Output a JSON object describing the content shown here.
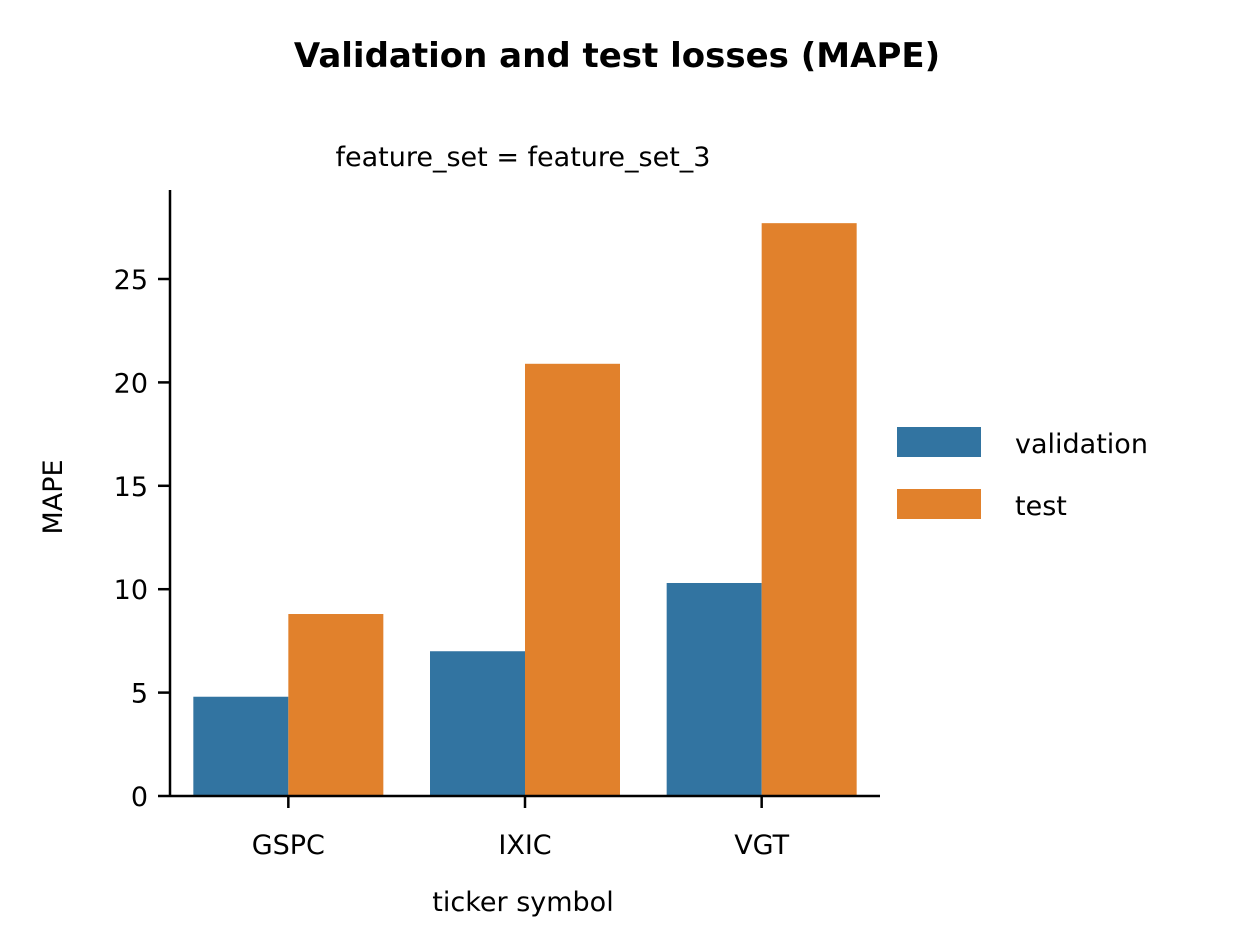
{
  "chart_data": {
    "type": "bar",
    "title": "Validation and test losses (MAPE)",
    "subtitle": "feature_set = feature_set_3",
    "xlabel": "ticker symbol",
    "ylabel": "MAPE",
    "categories": [
      "GSPC",
      "IXIC",
      "VGT"
    ],
    "series": [
      {
        "name": "validation",
        "color": "#3274a1",
        "values": [
          4.8,
          7.0,
          10.3
        ]
      },
      {
        "name": "test",
        "color": "#e1812c",
        "values": [
          8.8,
          20.9,
          27.7
        ]
      }
    ],
    "ylim": [
      0,
      29
    ],
    "yticks": [
      0,
      5,
      10,
      15,
      20,
      25
    ],
    "grid": false,
    "legend": "right"
  }
}
